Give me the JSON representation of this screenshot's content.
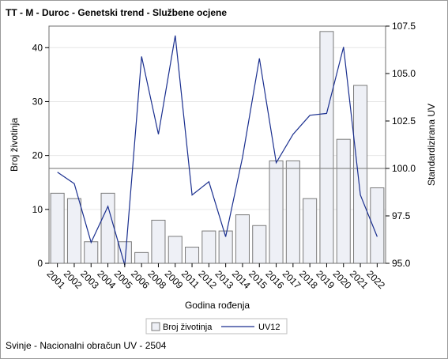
{
  "header": {
    "title": "TT - M - Duroc - Genetski trend - Službene ocjene"
  },
  "footer": {
    "text": "Svinje - Nacionalni obračun UV - 2504"
  },
  "colors": {
    "bar_fill": "#eef0f6",
    "bar_stroke": "#7a7a7a",
    "line": "#1a2f8f",
    "ref_line": "#8c8c8c",
    "grid": "#e6e6e6"
  },
  "chart_data": {
    "type": "bar",
    "categories": [
      "2001",
      "2002",
      "2003",
      "2004",
      "2005",
      "2006",
      "2008",
      "2009",
      "2011",
      "2012",
      "2013",
      "2014",
      "2015",
      "2016",
      "2017",
      "2018",
      "2019",
      "2020",
      "2021",
      "2022"
    ],
    "series": [
      {
        "name": "Broj životinja",
        "type": "bar",
        "axis": "left",
        "values": [
          13,
          12,
          4,
          13,
          4,
          2,
          8,
          5,
          3,
          6,
          6,
          9,
          7,
          19,
          19,
          12,
          43,
          23,
          33,
          14
        ]
      },
      {
        "name": "UV12",
        "type": "line",
        "axis": "right",
        "values": [
          99.8,
          99.2,
          96.1,
          98.0,
          94.9,
          105.9,
          101.8,
          107.0,
          98.6,
          99.3,
          96.4,
          100.6,
          105.8,
          100.3,
          101.8,
          102.8,
          102.9,
          106.4,
          98.6,
          96.4
        ]
      }
    ],
    "xlabel": "Godina rođenja",
    "ylabel": "Broj životinja",
    "y2label": "Standardizirana UV",
    "ylim": [
      0,
      44
    ],
    "y2lim": [
      95,
      107.5
    ],
    "yticks": [
      0,
      10,
      20,
      30,
      40
    ],
    "y2ticks": [
      "95.0",
      "97.5",
      "100.0",
      "102.5",
      "105.0",
      "107.5"
    ],
    "reference_line_y2": 100,
    "legend": {
      "position": "bottom"
    },
    "grid": true
  }
}
